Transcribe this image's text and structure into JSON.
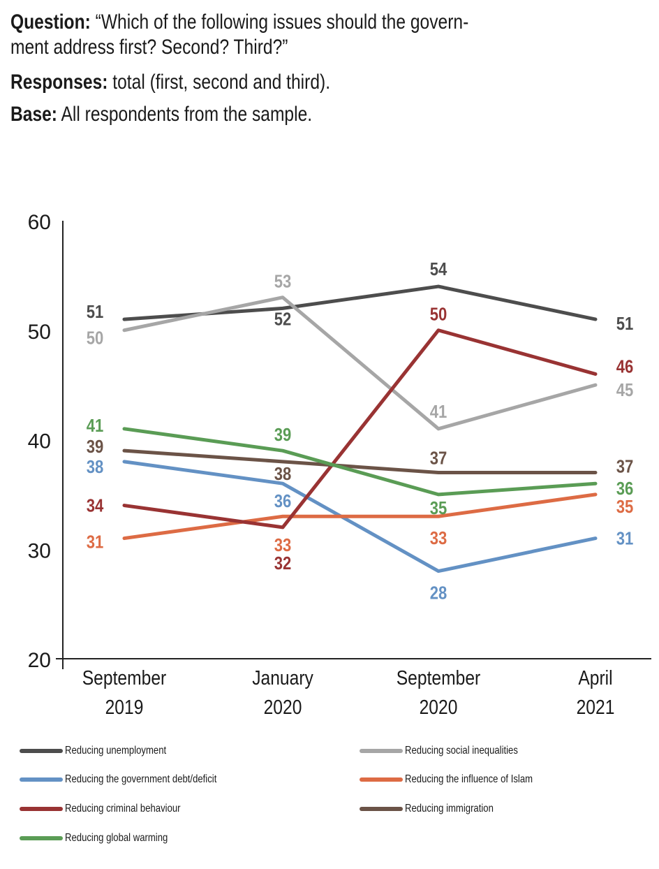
{
  "header": {
    "question_label": "Question:",
    "question_text_line1": " “Which of the following issues should the govern-",
    "question_text_line2": "ment address first? Second? Third?”",
    "responses_label": "Responses:",
    "responses_text": " total (first, second and third).",
    "base_label": "Base:",
    "base_text": " All respondents from the sample."
  },
  "chart_data": {
    "type": "line",
    "title": "",
    "xlabel": "",
    "ylabel": "",
    "x": [
      "September 2019",
      "January 2020",
      "September 2020",
      "April 2021"
    ],
    "x_tick_lines": [
      [
        "September",
        "2019"
      ],
      [
        "January",
        "2020"
      ],
      [
        "September",
        "2020"
      ],
      [
        "April",
        "2021"
      ]
    ],
    "ylim": [
      20,
      60
    ],
    "yticks": [
      20,
      30,
      40,
      50,
      60
    ],
    "grid": false,
    "legend_position": "bottom",
    "series": [
      {
        "name": "Reducing unemployment",
        "color": "#4d4d4d",
        "values": [
          51,
          52,
          54,
          51
        ]
      },
      {
        "name": "Reducing social inequalities",
        "color": "#a6a6a6",
        "values": [
          50,
          53,
          41,
          45
        ]
      },
      {
        "name": "Reducing the government debt/deficit",
        "color": "#6391c4",
        "values": [
          38,
          36,
          28,
          31
        ]
      },
      {
        "name": "Reducing the influence of Islam",
        "color": "#dd6b44",
        "values": [
          31,
          33,
          33,
          35
        ]
      },
      {
        "name": "Reducing criminal behaviour",
        "color": "#993333",
        "values": [
          34,
          32,
          50,
          46
        ]
      },
      {
        "name": "Reducing immigration",
        "color": "#6b5347",
        "values": [
          39,
          38,
          37,
          37
        ]
      },
      {
        "name": "Reducing global warming",
        "color": "#5a9c55",
        "values": [
          41,
          39,
          35,
          36
        ]
      }
    ]
  },
  "legend": {
    "items": [
      {
        "label": "Reducing unemployment",
        "color": "#4d4d4d"
      },
      {
        "label": "Reducing the government debt/deficit",
        "color": "#6391c4"
      },
      {
        "label": "Reducing criminal behaviour",
        "color": "#993333"
      },
      {
        "label": "Reducing global warming",
        "color": "#5a9c55"
      },
      {
        "label": "Reducing social inequalities",
        "color": "#a6a6a6"
      },
      {
        "label": "Reducing the influence of Islam",
        "color": "#dd6b44"
      },
      {
        "label": "Reducing immigration",
        "color": "#6b5347"
      }
    ]
  }
}
